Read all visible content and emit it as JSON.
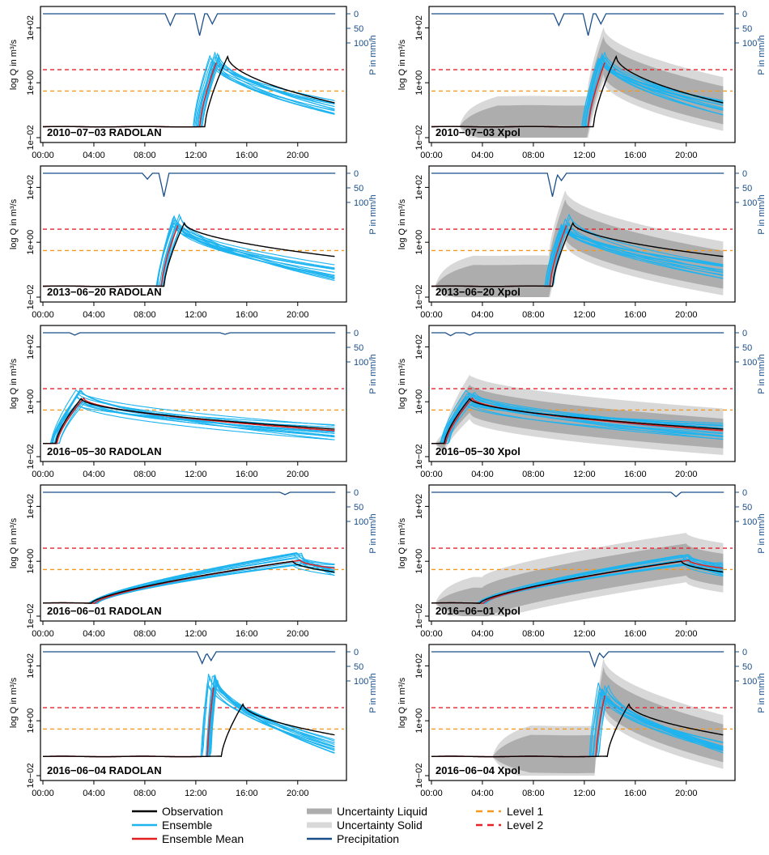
{
  "colors": {
    "observation": "#000000",
    "ensemble": "#1EB4F0",
    "ensemble_mean": "#E02020",
    "uncertainty_liquid": "#ADADAD",
    "uncertainty_solid": "#D8D8D8",
    "precipitation": "#1B4F8A",
    "level1": "#F39A1E",
    "level2": "#E8202A"
  },
  "axis_labels": {
    "y_left": "log Q in m³/s",
    "y_right": "P in mm/h",
    "y_left_ticks": [
      "1e−02",
      "1e+00",
      "1e+02"
    ],
    "y_right_ticks": [
      "0",
      "50",
      "100"
    ],
    "x_ticks": [
      "00:00",
      "04:00",
      "08:00",
      "12:00",
      "16:00",
      "20:00"
    ]
  },
  "legend": {
    "observation": "Observation",
    "ensemble": "Ensemble",
    "ensemble_mean": "Ensemble Mean",
    "uncertainty_liquid": "Uncertainty Liquid",
    "uncertainty_solid": "Uncertainty Solid",
    "precipitation": "Precipitation",
    "level1": "Level 1",
    "level2": "Level 2"
  },
  "chart_data": [
    {
      "type": "line",
      "title": "2010−07−03 RADOLAN",
      "x_unit": "hours",
      "y_scale": "log",
      "ylim": [
        0.01,
        400
      ],
      "p_range": [
        0,
        100
      ],
      "level1": 0.5,
      "level2": 3,
      "rise": 12.2,
      "peak": 13.5,
      "peak_q": 8,
      "base_q": 0.025,
      "end_q": 0.12,
      "obs_peak": 14.0,
      "obs_peak_q": 9,
      "obs_end_q": 0.18,
      "ens_spread": 0.22,
      "rain": [
        [
          10,
          40
        ],
        [
          12.3,
          75
        ],
        [
          13.3,
          35
        ]
      ],
      "unc": false
    },
    {
      "type": "line",
      "title": "2010−07−03 Xpol",
      "x_unit": "hours",
      "y_scale": "log",
      "ylim": [
        0.01,
        400
      ],
      "p_range": [
        0,
        100
      ],
      "level1": 0.5,
      "level2": 3,
      "rise": 12.2,
      "peak": 13.5,
      "peak_q": 8,
      "base_q": 0.025,
      "end_q": 0.12,
      "obs_peak": 14.0,
      "obs_peak_q": 9,
      "obs_end_q": 0.18,
      "ens_spread": 0.22,
      "rain": [
        [
          10,
          40
        ],
        [
          12.3,
          75
        ],
        [
          13.3,
          35
        ]
      ],
      "unc": true,
      "unc_lo": 0.02,
      "unc_hi": 30
    },
    {
      "type": "line",
      "title": "2013−06−20 RADOLAN",
      "x_unit": "hours",
      "y_scale": "log",
      "ylim": [
        0.01,
        400
      ],
      "p_range": [
        0,
        100
      ],
      "level1": 0.5,
      "level2": 3,
      "rise": 9.2,
      "peak": 10.5,
      "peak_q": 6,
      "base_q": 0.025,
      "end_q": 0.08,
      "obs_peak": 10.8,
      "obs_peak_q": 5,
      "obs_end_q": 0.3,
      "ens_spread": 0.25,
      "rain": [
        [
          9.5,
          80
        ],
        [
          8.2,
          20
        ]
      ],
      "unc": false
    },
    {
      "type": "line",
      "title": "2013−06−20 Xpol",
      "x_unit": "hours",
      "y_scale": "log",
      "ylim": [
        0.01,
        400
      ],
      "p_range": [
        0,
        100
      ],
      "level1": 0.5,
      "level2": 3,
      "rise": 9.2,
      "peak": 10.5,
      "peak_q": 6,
      "base_q": 0.025,
      "end_q": 0.08,
      "obs_peak": 10.8,
      "obs_peak_q": 5,
      "obs_end_q": 0.3,
      "ens_spread": 0.25,
      "rain": [
        [
          9.5,
          80
        ],
        [
          10.2,
          25
        ]
      ],
      "unc": true,
      "unc_lo": 0.02,
      "unc_hi": 20
    },
    {
      "type": "line",
      "title": "2016−05−30 RADOLAN",
      "x_unit": "hours",
      "y_scale": "log",
      "ylim": [
        0.01,
        400
      ],
      "p_range": [
        0,
        100
      ],
      "level1": 0.5,
      "level2": 3,
      "rise": 1.0,
      "peak": 3.0,
      "peak_q": 1.5,
      "base_q": 0.03,
      "end_q": 0.08,
      "obs_peak": 3.0,
      "obs_peak_q": 1.3,
      "obs_end_q": 0.1,
      "ens_spread": 0.25,
      "rain": [
        [
          2.5,
          8
        ],
        [
          14.3,
          5
        ]
      ],
      "unc": false
    },
    {
      "type": "line",
      "title": "2016−05−30 Xpol",
      "x_unit": "hours",
      "y_scale": "log",
      "ylim": [
        0.01,
        400
      ],
      "p_range": [
        0,
        100
      ],
      "level1": 0.5,
      "level2": 3,
      "rise": 1.0,
      "peak": 3.0,
      "peak_q": 1.5,
      "base_q": 0.03,
      "end_q": 0.08,
      "obs_peak": 3.0,
      "obs_peak_q": 1.3,
      "obs_end_q": 0.1,
      "ens_spread": 0.25,
      "rain": [
        [
          1.5,
          10
        ],
        [
          3.0,
          8
        ]
      ],
      "unc": true,
      "unc_lo": 0.02,
      "unc_hi": 6
    },
    {
      "type": "line",
      "title": "2016−06−01 RADOLAN",
      "x_unit": "hours",
      "y_scale": "log",
      "ylim": [
        0.01,
        400
      ],
      "p_range": [
        0,
        100
      ],
      "level1": 0.5,
      "level2": 3,
      "rise": 4.0,
      "peak": 20.0,
      "peak_q": 1.2,
      "base_q": 0.03,
      "end_q": 0.5,
      "obs_peak": 19.8,
      "obs_peak_q": 1.0,
      "obs_end_q": 0.4,
      "ens_spread": 0.22,
      "rain": [
        [
          19,
          8
        ]
      ],
      "unc": false
    },
    {
      "type": "line",
      "title": "2016−06−01 Xpol",
      "x_unit": "hours",
      "y_scale": "log",
      "ylim": [
        0.01,
        400
      ],
      "p_range": [
        0,
        100
      ],
      "level1": 0.5,
      "level2": 3,
      "rise": 4.0,
      "peak": 20.0,
      "peak_q": 1.2,
      "base_q": 0.03,
      "end_q": 0.5,
      "obs_peak": 19.8,
      "obs_peak_q": 1.0,
      "obs_end_q": 0.4,
      "ens_spread": 0.22,
      "rain": [
        [
          19.2,
          15
        ]
      ],
      "unc": true,
      "unc_lo": 0.02,
      "unc_hi": 8
    },
    {
      "type": "line",
      "title": "2016−06−04 RADOLAN",
      "x_unit": "hours",
      "y_scale": "log",
      "ylim": [
        0.01,
        400
      ],
      "p_range": [
        0,
        100
      ],
      "level1": 0.5,
      "level2": 3,
      "rise": 12.8,
      "peak": 13.3,
      "peak_q": 40,
      "base_q": 0.05,
      "end_q": 0.12,
      "obs_peak": 14.5,
      "obs_peak_q": 4,
      "obs_end_q": 0.3,
      "ens_spread": 0.25,
      "rain": [
        [
          12.5,
          40
        ],
        [
          13.2,
          30
        ]
      ],
      "unc": false
    },
    {
      "type": "line",
      "title": "2016−06−04 Xpol",
      "x_unit": "hours",
      "y_scale": "log",
      "ylim": [
        0.01,
        400
      ],
      "p_range": [
        0,
        100
      ],
      "level1": 0.5,
      "level2": 3,
      "rise": 12.8,
      "peak": 13.5,
      "peak_q": 15,
      "base_q": 0.05,
      "end_q": 0.12,
      "obs_peak": 14.5,
      "obs_peak_q": 4,
      "obs_end_q": 0.3,
      "ens_spread": 0.25,
      "rain": [
        [
          12.8,
          50
        ],
        [
          13.5,
          20
        ]
      ],
      "unc": true,
      "unc_lo": 0.03,
      "unc_hi": 20
    }
  ]
}
